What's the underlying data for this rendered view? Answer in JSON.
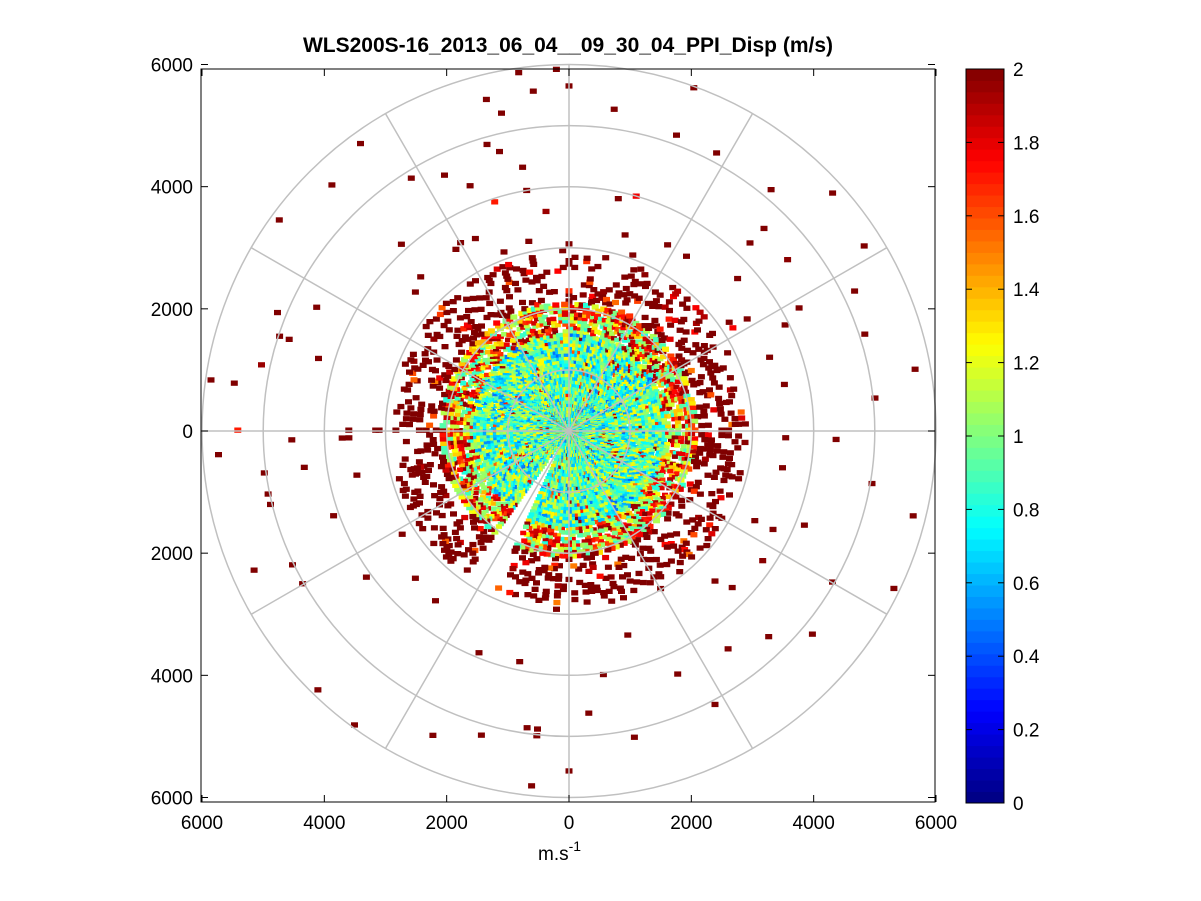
{
  "chart_data": {
    "type": "heatmap",
    "subtype": "polar-ppi",
    "title": "WLS200S-16_2013_06_04__09_30_04_PPI_Disp (m/s)",
    "xlabel_base": "m.s",
    "xlabel_exp": "-1",
    "xlim": [
      -6000,
      6000
    ],
    "ylim": [
      -6000,
      6000
    ],
    "x_ticks": [
      -6000,
      -4000,
      -2000,
      0,
      2000,
      4000,
      6000
    ],
    "x_tick_labels": [
      "6000",
      "4000",
      "2000",
      "0",
      "2000",
      "4000",
      "6000"
    ],
    "y_ticks": [
      6000,
      4000,
      2000,
      0,
      -2000,
      -4000,
      -6000
    ],
    "y_tick_labels": [
      "6000",
      "4000",
      "2000",
      "0",
      "2000",
      "4000",
      "6000"
    ],
    "polar_rings": [
      1000,
      2000,
      3000,
      4000,
      5000,
      6000
    ],
    "polar_spokes_deg": [
      0,
      30,
      60,
      90,
      120,
      150,
      180,
      210,
      240,
      270,
      300,
      330
    ],
    "grid": true,
    "colorbar": {
      "min": 0,
      "max": 2,
      "ticks": [
        0,
        0.2,
        0.4,
        0.6,
        0.8,
        1,
        1.2,
        1.4,
        1.6,
        1.8,
        2
      ],
      "tick_labels": [
        "0",
        "0.2",
        "0.4",
        "0.6",
        "0.8",
        "1",
        "1.2",
        "1.4",
        "1.6",
        "1.8",
        "2"
      ],
      "colormap": "jet",
      "position": "right"
    },
    "data_description_values": {
      "dense_core_radius": 2000,
      "sparse_outer_radius": 6000,
      "gap_sector_deg": [
        205,
        215
      ],
      "core_value_range": [
        0.6,
        1.3
      ],
      "edge_value": 2
    }
  }
}
